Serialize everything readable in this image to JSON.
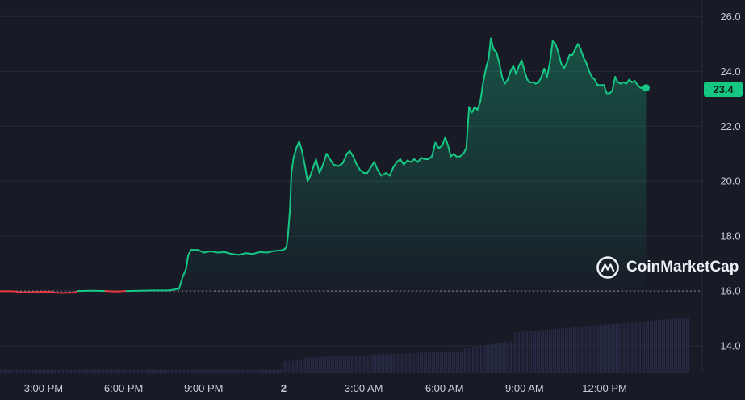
{
  "chart_data": {
    "type": "area",
    "brand": "CoinMarketCap",
    "last_price_label": "23.4",
    "colors": {
      "up": "#16c784",
      "down": "#ea3943",
      "background": "#181a26",
      "volume": "#2a2e4a"
    },
    "baseline": 16.0,
    "ylim": [
      13.0,
      26.6
    ],
    "y_ticks": [
      "14.0",
      "16.0",
      "18.0",
      "20.0",
      "22.0",
      "24.0",
      "26.0"
    ],
    "x_ticks": [
      {
        "label": "3:00 PM",
        "t": 0.062
      },
      {
        "label": "6:00 PM",
        "t": 0.176
      },
      {
        "label": "9:00 PM",
        "t": 0.29
      },
      {
        "label": "2",
        "t": 0.404,
        "bold": true
      },
      {
        "label": "3:00 AM",
        "t": 0.518
      },
      {
        "label": "6:00 AM",
        "t": 0.633
      },
      {
        "label": "9:00 AM",
        "t": 0.747
      },
      {
        "label": "12:00 PM",
        "t": 0.861
      }
    ],
    "series": [
      {
        "values": [
          [
            0.0,
            15.99
          ],
          [
            0.02,
            15.99
          ],
          [
            0.03,
            15.95
          ],
          [
            0.045,
            15.96
          ],
          [
            0.06,
            15.97
          ],
          [
            0.072,
            15.97
          ],
          [
            0.078,
            15.94
          ],
          [
            0.09,
            15.93
          ],
          [
            0.1,
            15.94
          ],
          [
            0.106,
            15.94
          ],
          [
            0.11,
            16.0
          ],
          [
            0.13,
            16.01
          ],
          [
            0.15,
            16.0
          ],
          [
            0.165,
            15.98
          ],
          [
            0.18,
            16.0
          ],
          [
            0.2,
            16.01
          ],
          [
            0.22,
            16.02
          ],
          [
            0.24,
            16.02
          ],
          [
            0.255,
            16.08
          ],
          [
            0.26,
            16.5
          ],
          [
            0.265,
            16.8
          ],
          [
            0.268,
            17.3
          ],
          [
            0.272,
            17.5
          ],
          [
            0.282,
            17.5
          ],
          [
            0.29,
            17.4
          ],
          [
            0.3,
            17.45
          ],
          [
            0.31,
            17.4
          ],
          [
            0.32,
            17.42
          ],
          [
            0.33,
            17.35
          ],
          [
            0.34,
            17.32
          ],
          [
            0.35,
            17.38
          ],
          [
            0.36,
            17.35
          ],
          [
            0.37,
            17.42
          ],
          [
            0.38,
            17.4
          ],
          [
            0.39,
            17.46
          ],
          [
            0.4,
            17.48
          ],
          [
            0.405,
            17.52
          ],
          [
            0.408,
            17.6
          ],
          [
            0.41,
            18.0
          ],
          [
            0.413,
            19.0
          ],
          [
            0.415,
            20.3
          ],
          [
            0.418,
            20.85
          ],
          [
            0.422,
            21.2
          ],
          [
            0.426,
            21.45
          ],
          [
            0.43,
            21.1
          ],
          [
            0.434,
            20.6
          ],
          [
            0.438,
            20.0
          ],
          [
            0.442,
            20.2
          ],
          [
            0.446,
            20.5
          ],
          [
            0.45,
            20.8
          ],
          [
            0.455,
            20.3
          ],
          [
            0.46,
            20.6
          ],
          [
            0.465,
            21.0
          ],
          [
            0.47,
            20.8
          ],
          [
            0.475,
            20.6
          ],
          [
            0.482,
            20.55
          ],
          [
            0.488,
            20.65
          ],
          [
            0.494,
            21.0
          ],
          [
            0.498,
            21.1
          ],
          [
            0.503,
            20.9
          ],
          [
            0.508,
            20.6
          ],
          [
            0.513,
            20.4
          ],
          [
            0.518,
            20.3
          ],
          [
            0.523,
            20.3
          ],
          [
            0.528,
            20.5
          ],
          [
            0.533,
            20.7
          ],
          [
            0.538,
            20.4
          ],
          [
            0.543,
            20.2
          ],
          [
            0.55,
            20.3
          ],
          [
            0.555,
            20.2
          ],
          [
            0.56,
            20.5
          ],
          [
            0.565,
            20.7
          ],
          [
            0.57,
            20.8
          ],
          [
            0.575,
            20.6
          ],
          [
            0.58,
            20.75
          ],
          [
            0.585,
            20.7
          ],
          [
            0.59,
            20.8
          ],
          [
            0.595,
            20.7
          ],
          [
            0.6,
            20.85
          ],
          [
            0.605,
            20.8
          ],
          [
            0.61,
            20.8
          ],
          [
            0.615,
            20.9
          ],
          [
            0.62,
            21.4
          ],
          [
            0.625,
            21.2
          ],
          [
            0.63,
            21.3
          ],
          [
            0.634,
            21.6
          ],
          [
            0.638,
            21.3
          ],
          [
            0.642,
            20.9
          ],
          [
            0.646,
            21.0
          ],
          [
            0.65,
            20.9
          ],
          [
            0.655,
            20.9
          ],
          [
            0.66,
            21.0
          ],
          [
            0.664,
            21.2
          ],
          [
            0.668,
            22.7
          ],
          [
            0.672,
            22.5
          ],
          [
            0.676,
            22.7
          ],
          [
            0.68,
            22.6
          ],
          [
            0.684,
            22.9
          ],
          [
            0.688,
            23.6
          ],
          [
            0.692,
            24.1
          ],
          [
            0.696,
            24.5
          ],
          [
            0.699,
            25.2
          ],
          [
            0.703,
            24.8
          ],
          [
            0.707,
            24.7
          ],
          [
            0.711,
            24.3
          ],
          [
            0.715,
            23.8
          ],
          [
            0.719,
            23.55
          ],
          [
            0.723,
            23.7
          ],
          [
            0.727,
            24.0
          ],
          [
            0.731,
            24.2
          ],
          [
            0.735,
            23.9
          ],
          [
            0.739,
            24.2
          ],
          [
            0.743,
            24.4
          ],
          [
            0.747,
            24.0
          ],
          [
            0.751,
            23.7
          ],
          [
            0.755,
            23.6
          ],
          [
            0.759,
            23.6
          ],
          [
            0.763,
            23.55
          ],
          [
            0.767,
            23.6
          ],
          [
            0.771,
            23.8
          ],
          [
            0.775,
            24.1
          ],
          [
            0.779,
            23.8
          ],
          [
            0.783,
            24.3
          ],
          [
            0.787,
            25.1
          ],
          [
            0.791,
            25.0
          ],
          [
            0.795,
            24.7
          ],
          [
            0.799,
            24.3
          ],
          [
            0.803,
            24.1
          ],
          [
            0.807,
            24.3
          ],
          [
            0.811,
            24.6
          ],
          [
            0.815,
            24.6
          ],
          [
            0.819,
            24.8
          ],
          [
            0.823,
            25.0
          ],
          [
            0.827,
            24.8
          ],
          [
            0.831,
            24.5
          ],
          [
            0.835,
            24.3
          ],
          [
            0.839,
            24.0
          ],
          [
            0.843,
            23.8
          ],
          [
            0.847,
            23.7
          ],
          [
            0.851,
            23.5
          ],
          [
            0.855,
            23.5
          ],
          [
            0.86,
            23.5
          ],
          [
            0.864,
            23.2
          ],
          [
            0.868,
            23.2
          ],
          [
            0.872,
            23.3
          ],
          [
            0.876,
            23.8
          ],
          [
            0.88,
            23.6
          ],
          [
            0.884,
            23.55
          ],
          [
            0.888,
            23.6
          ],
          [
            0.892,
            23.55
          ],
          [
            0.896,
            23.7
          ],
          [
            0.9,
            23.6
          ],
          [
            0.904,
            23.65
          ],
          [
            0.908,
            23.5
          ],
          [
            0.912,
            23.4
          ],
          [
            0.916,
            23.4
          ],
          [
            0.92,
            23.4
          ]
        ]
      }
    ]
  }
}
